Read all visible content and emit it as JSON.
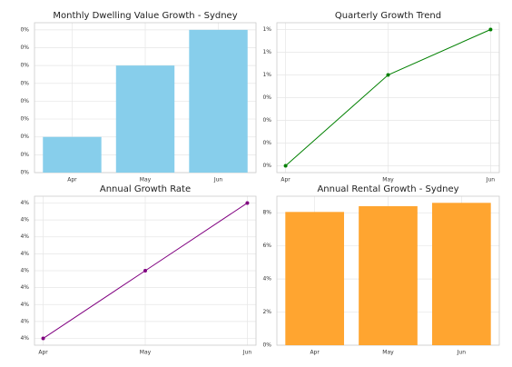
{
  "chart_data": [
    {
      "type": "bar",
      "title": "Monthly Dwelling Value Growth - Sydney",
      "categories": [
        "Apr",
        "May",
        "Jun"
      ],
      "values": [
        0.1,
        0.3,
        0.4
      ],
      "color": "#87ceeb",
      "ylim": [
        0,
        0.42
      ],
      "yticks": [
        {
          "value": 0,
          "label": "0%"
        },
        {
          "value": 0.05,
          "label": "0%"
        },
        {
          "value": 0.1,
          "label": "0%"
        },
        {
          "value": 0.15,
          "label": "0%"
        },
        {
          "value": 0.2,
          "label": "0%"
        },
        {
          "value": 0.25,
          "label": "0%"
        },
        {
          "value": 0.3,
          "label": "0%"
        },
        {
          "value": 0.35,
          "label": "0%"
        },
        {
          "value": 0.4,
          "label": "0%"
        }
      ],
      "grid": true
    },
    {
      "type": "line",
      "title": "Quarterly Growth Trend",
      "categories": [
        "Apr",
        "May",
        "Jun"
      ],
      "values": [
        0.2,
        0.6,
        0.8
      ],
      "color": "#008000",
      "ylim": [
        0.17,
        0.83
      ],
      "yticks": [
        {
          "value": 0.2,
          "label": "0%"
        },
        {
          "value": 0.3,
          "label": "0%"
        },
        {
          "value": 0.4,
          "label": "0%"
        },
        {
          "value": 0.5,
          "label": "0%"
        },
        {
          "value": 0.6,
          "label": "1%"
        },
        {
          "value": 0.7,
          "label": "1%"
        },
        {
          "value": 0.8,
          "label": "1%"
        }
      ],
      "grid": true
    },
    {
      "type": "line",
      "title": "Annual Growth Rate",
      "categories": [
        "Apr",
        "May",
        "Jun"
      ],
      "values": [
        3.6,
        4.0,
        4.4
      ],
      "color": "#800080",
      "ylim": [
        3.56,
        4.44
      ],
      "yticks": [
        {
          "value": 3.6,
          "label": "4%"
        },
        {
          "value": 3.7,
          "label": "4%"
        },
        {
          "value": 3.8,
          "label": "4%"
        },
        {
          "value": 3.9,
          "label": "4%"
        },
        {
          "value": 4.0,
          "label": "4%"
        },
        {
          "value": 4.1,
          "label": "4%"
        },
        {
          "value": 4.2,
          "label": "4%"
        },
        {
          "value": 4.3,
          "label": "4%"
        },
        {
          "value": 4.4,
          "label": "4%"
        }
      ],
      "grid": true
    },
    {
      "type": "bar",
      "title": "Annual Rental Growth - Sydney",
      "categories": [
        "Apr",
        "May",
        "Jun"
      ],
      "values": [
        8.05,
        8.4,
        8.6
      ],
      "color": "#ffa530",
      "ylim": [
        0,
        9.0
      ],
      "yticks": [
        {
          "value": 0,
          "label": "0%"
        },
        {
          "value": 2,
          "label": "2%"
        },
        {
          "value": 4,
          "label": "4%"
        },
        {
          "value": 6,
          "label": "6%"
        },
        {
          "value": 8,
          "label": "8%"
        }
      ],
      "grid": true
    }
  ]
}
